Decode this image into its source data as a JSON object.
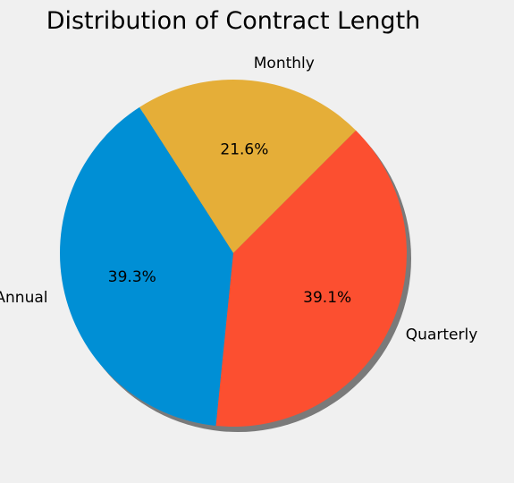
{
  "chart_data": {
    "type": "pie",
    "title": "Distribution of Contract Length",
    "categories": [
      "Monthly",
      "Annual",
      "Quarterly"
    ],
    "values": [
      21.6,
      39.3,
      39.1
    ],
    "labels": [
      "21.6%",
      "39.3%",
      "39.1%"
    ],
    "colors": [
      "#e5ae38",
      "#008fd5",
      "#fc4f30"
    ],
    "background": "#f0f0f0",
    "shadow_color": "#7a7a7a",
    "start_angle_deg": 45,
    "direction": "counterclockwise",
    "shadow": true,
    "legend": "none"
  }
}
